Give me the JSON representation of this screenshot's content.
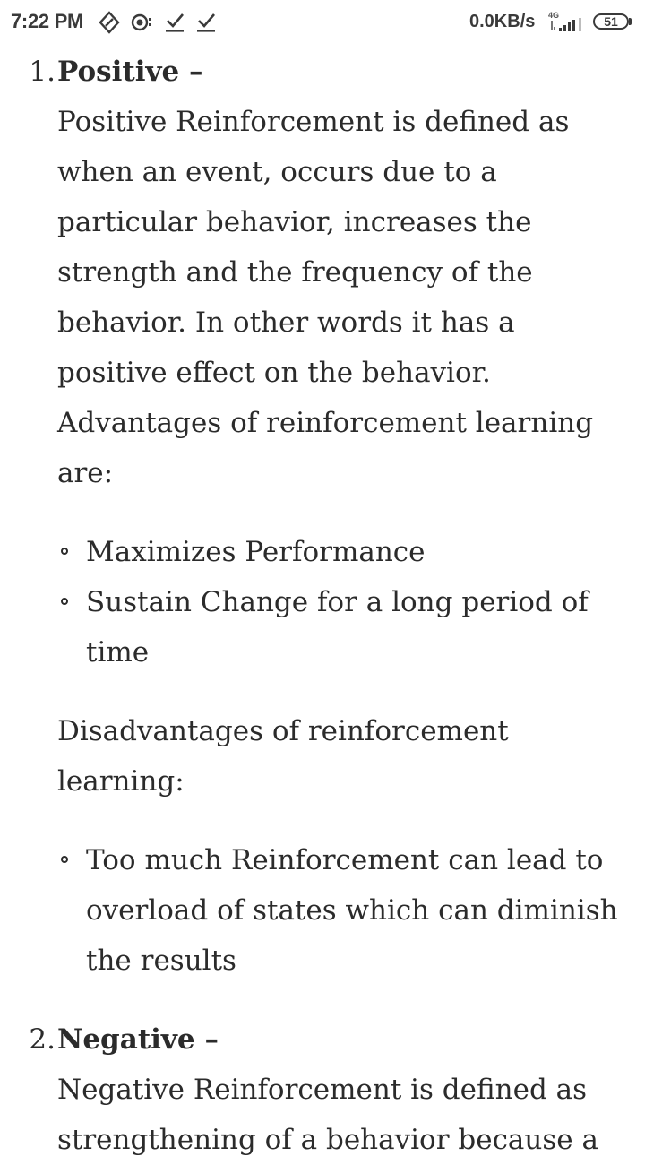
{
  "status_bar": {
    "time": "7:22 PM",
    "icons": [
      "vpn-shield-icon",
      "camera-icon",
      "download-done-icon",
      "download-done-icon"
    ],
    "net_speed": "0.0KB/s",
    "network_type": "4G",
    "battery": "51"
  },
  "article": {
    "items": [
      {
        "number": "1.",
        "heading": "Positive –",
        "paragraph": "Positive Reinforcement is defined as when an event, occurs due to a particular behavior, increases the strength and the frequency of the behavior. In other words it has a positive effect on the behavior.",
        "advantages_intro": "Advantages of reinforcement learning are:",
        "advantages": [
          "Maximizes Performance",
          "Sustain Change for a long period of time"
        ],
        "disadvantages_intro": "Disadvantages of reinforcement learning:",
        "disadvantages": [
          "Too much Reinforcement can lead to overload of states which can diminish the results"
        ]
      },
      {
        "number": "2.",
        "heading": "Negative –",
        "paragraph": "Negative Reinforcement is defined as strengthening of a behavior because a"
      }
    ]
  }
}
